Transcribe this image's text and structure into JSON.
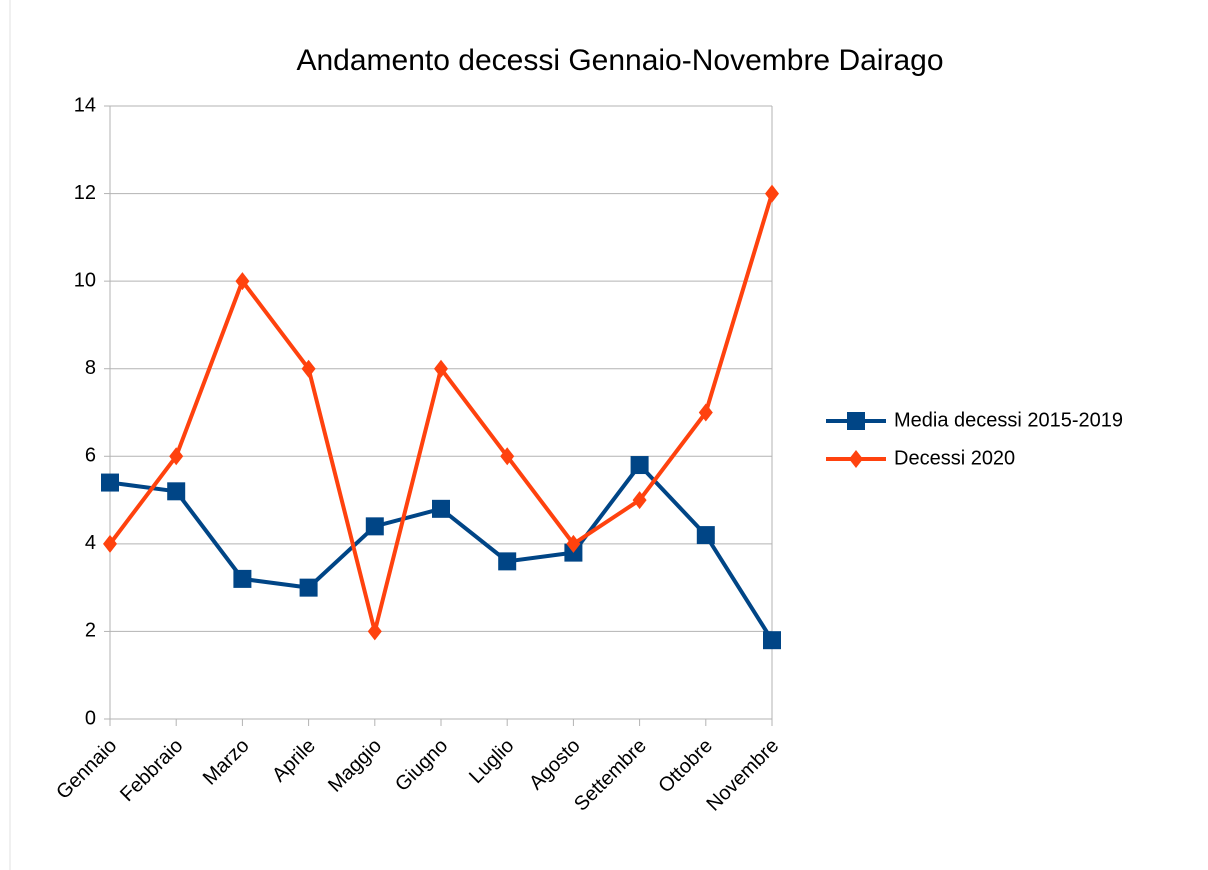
{
  "chart_data": {
    "type": "line",
    "title": "Andamento decessi Gennaio-Novembre Dairago",
    "categories": [
      "Gennaio",
      "Febbraio",
      "Marzo",
      "Aprile",
      "Maggio",
      "Giugno",
      "Luglio",
      "Agosto",
      "Settembre",
      "Ottobre",
      "Novembre"
    ],
    "series": [
      {
        "name": "Media decessi 2015-2019",
        "color": "#004586",
        "marker": "square",
        "values": [
          5.4,
          5.2,
          3.2,
          3.0,
          4.4,
          4.8,
          3.6,
          3.8,
          5.8,
          4.2,
          1.8
        ]
      },
      {
        "name": "Decessi 2020",
        "color": "#ff420e",
        "marker": "diamond",
        "values": [
          4,
          6,
          10,
          8,
          2,
          8,
          6,
          4,
          5,
          7,
          12
        ]
      }
    ],
    "ylim": [
      0,
      14
    ],
    "yticks": [
      0,
      2,
      4,
      6,
      8,
      10,
      12,
      14
    ],
    "grid": true,
    "legend": "right"
  }
}
